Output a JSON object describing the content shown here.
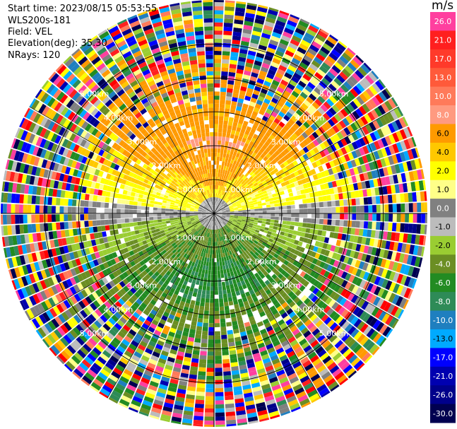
{
  "header": {
    "start_time": "Start time: 2023/08/15 05:53:55",
    "instrument": "WLS200s-181",
    "field": "Field: VEL",
    "elevation": "Elevation(deg): 35.30",
    "nrays": "NRays: 120"
  },
  "colorbar": {
    "unit": "m/s",
    "ticks": [
      "26.0",
      "21.0",
      "17.0",
      "13.0",
      "10.0",
      "8.0",
      "6.0",
      "4.0",
      "2.0",
      "1.0",
      "0.0",
      "-1.0",
      "-2.0",
      "-4.0",
      "-6.0",
      "-8.0",
      "-10.0",
      "-13.0",
      "-17.0",
      "-21.0",
      "-26.0",
      "-30.0"
    ],
    "colors": [
      "#ff3f9f",
      "#ff1f1f",
      "#ff3a2a",
      "#ff5a3a",
      "#ff7a5a",
      "#ff9a80",
      "#ff9a00",
      "#ffc800",
      "#ffff00",
      "#ffff88",
      "#808080",
      "#bcbcbc",
      "#9acd32",
      "#6b8e23",
      "#228b22",
      "#2e8b57",
      "#1f7fbf",
      "#00aaff",
      "#0000ff",
      "#0000b0",
      "#00008b",
      "#000050"
    ]
  },
  "chart_data": {
    "type": "heatmap",
    "title": "Start time: 2023/08/15 05:53:55",
    "field": "VEL",
    "units": "m/s",
    "elevation_deg": 35.3,
    "n_rays": 120,
    "range_rings_km": [
      1.0,
      2.0,
      3.0,
      4.0,
      5.0
    ],
    "ring_labels": [
      "1.00km",
      "2.00km",
      "3.00km",
      "4.00km",
      "5.00km"
    ],
    "velocity_pattern": {
      "north_sector_ms": [
        2.0,
        6.0
      ],
      "south_sector_ms": [
        -2.0,
        -6.0
      ],
      "near_center_ms": [
        -1.0,
        1.0
      ],
      "far_range": "noise"
    }
  }
}
